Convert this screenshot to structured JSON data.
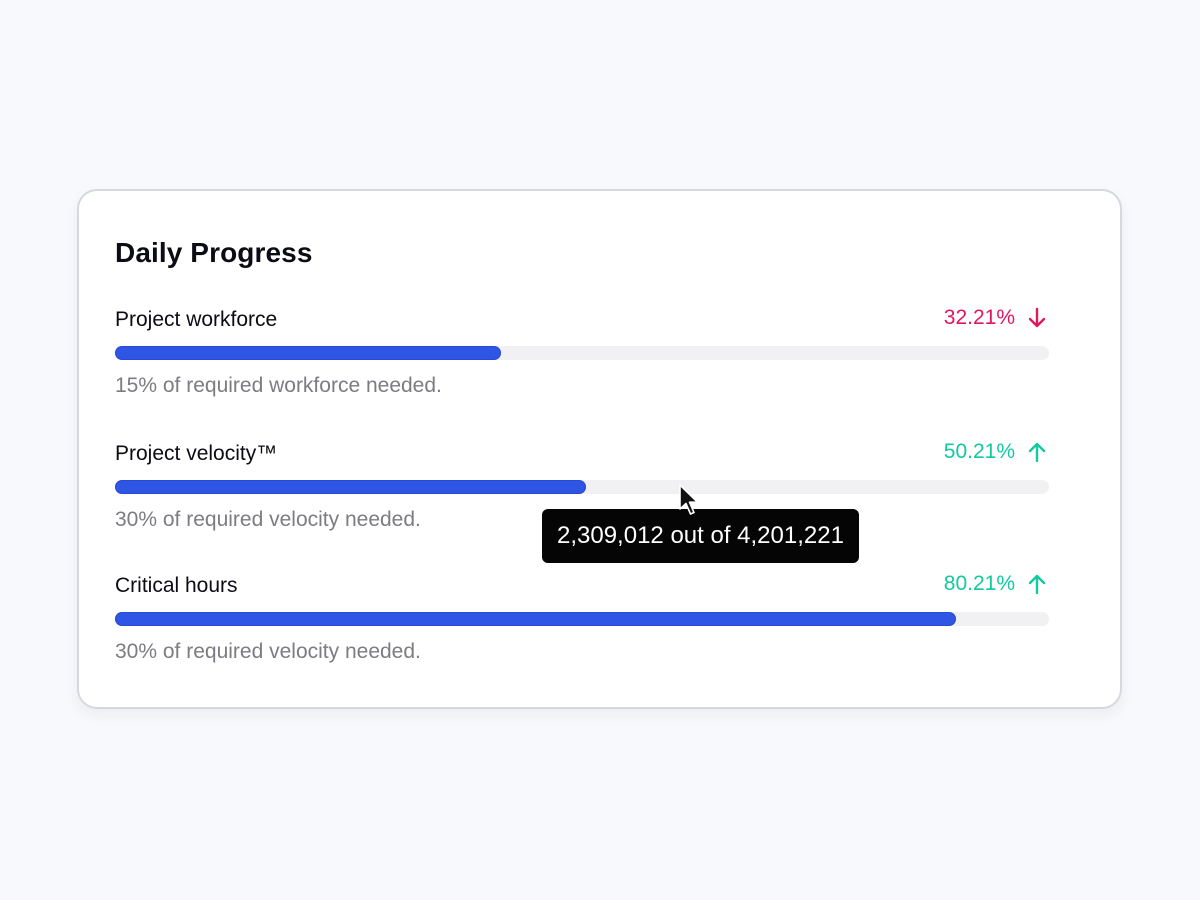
{
  "card": {
    "title": "Daily Progress"
  },
  "metrics": [
    {
      "label": "Project workforce",
      "change": "32.21%",
      "direction": "down",
      "trend_icon": "arrow-down-icon",
      "trend_color": "#e2165e",
      "progress": 0.413,
      "note": "15% of required workforce needed."
    },
    {
      "label": "Project velocity™",
      "change": "50.21%",
      "direction": "up",
      "trend_icon": "arrow-up-icon",
      "trend_color": "#13c9a0",
      "progress": 0.504,
      "note": "30% of required velocity needed."
    },
    {
      "label": "Critical hours",
      "change": "80.21%",
      "direction": "up",
      "trend_icon": "arrow-up-icon",
      "trend_color": "#13c9a0",
      "progress": 0.9,
      "note": "30% of required velocity needed."
    }
  ],
  "tooltip": {
    "text": "2,309,012 out of 4,201,221"
  },
  "colors": {
    "bar_fill": "#2f55e4",
    "bar_track": "#f1f1f3",
    "background": "#f8f9fc"
  }
}
